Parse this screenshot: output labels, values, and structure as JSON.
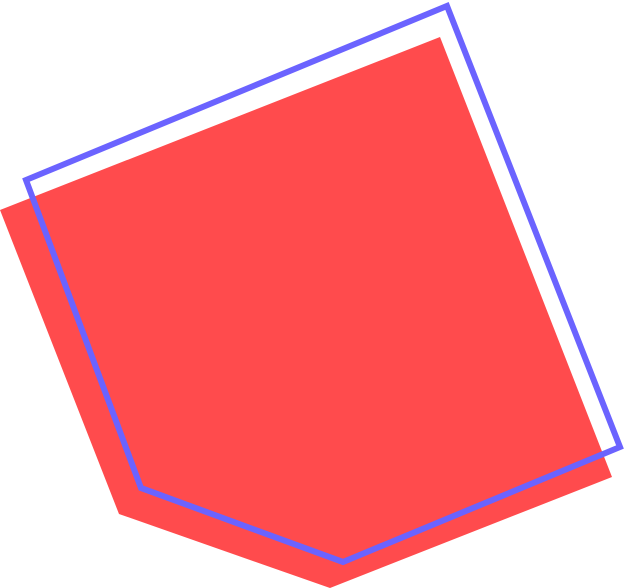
{
  "shapes": {
    "filled_pentagon": {
      "fill_color": "#ff4b4d"
    },
    "outlined_pentagon": {
      "stroke_color": "#6b63ff",
      "fill": "none"
    }
  }
}
